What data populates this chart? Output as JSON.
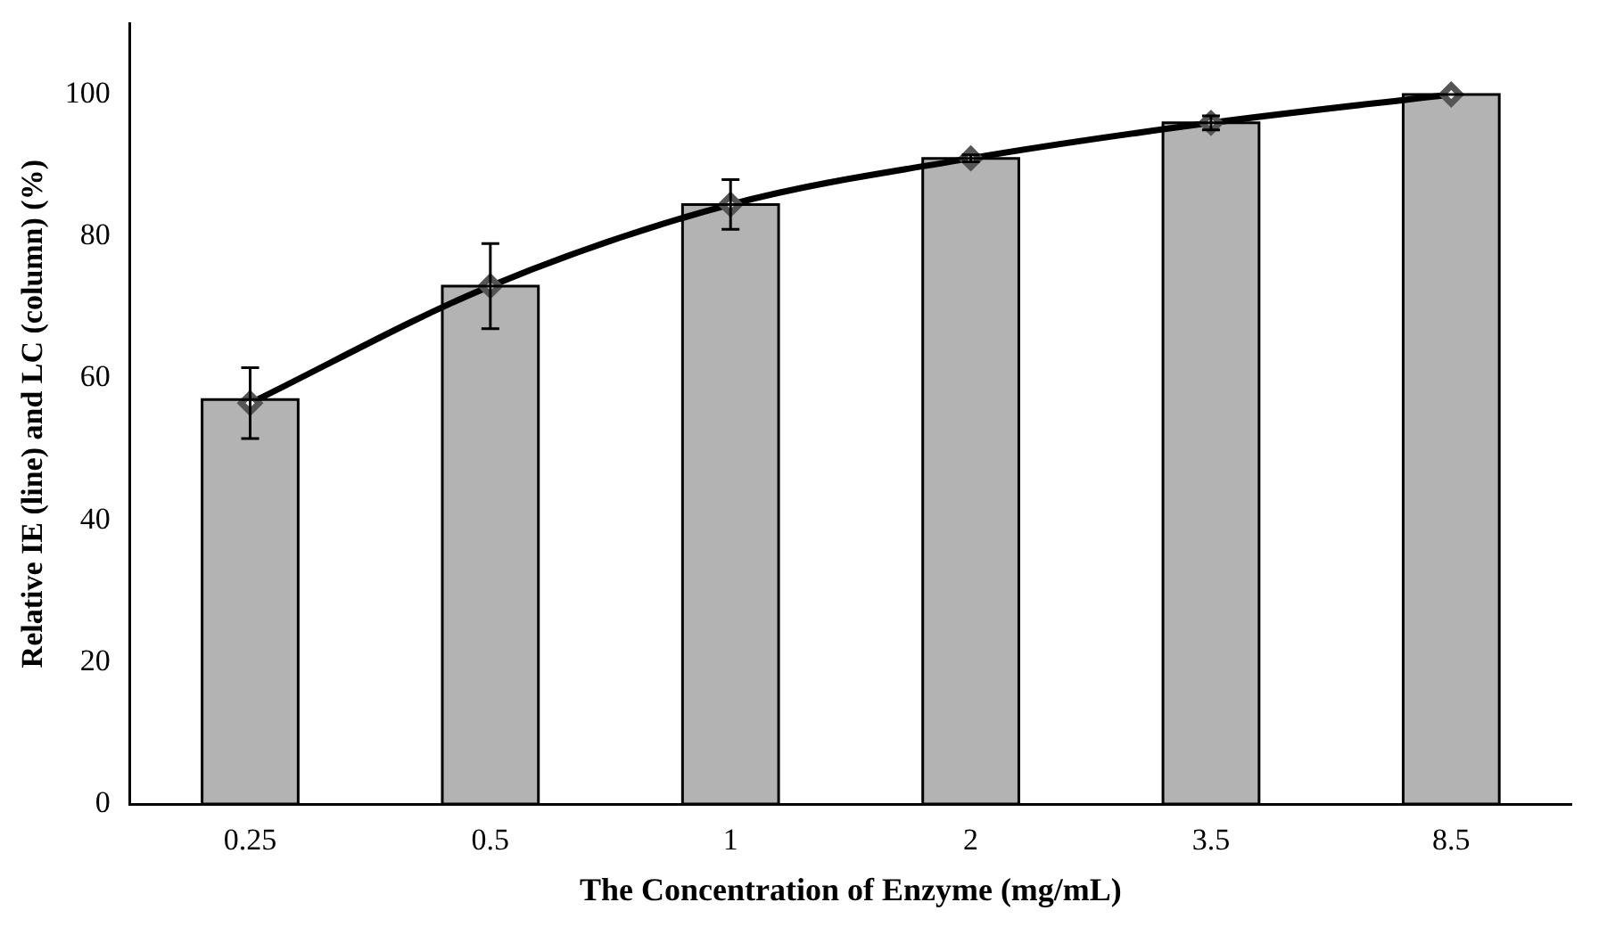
{
  "chart_data": {
    "type": "bar",
    "xlabel": "The Concentration of Enzyme (mg/mL)",
    "ylabel": "Relative IE (line) and LC (column) (%)",
    "categories": [
      "0.25",
      "0.5",
      "1",
      "2",
      "3.5",
      "8.5"
    ],
    "series": [
      {
        "color": "#b3b3b3",
        "values": [
          57,
          73,
          84.5,
          91,
          96,
          100
        ]
      },
      {
        "type": "line",
        "color": "#000000",
        "values": [
          56.5,
          73,
          84.5,
          91,
          96,
          100
        ],
        "errors": [
          5,
          6,
          3.5,
          0.5,
          1,
          null
        ],
        "marker": "diamond"
      }
    ],
    "ylim": [
      0,
      110
    ],
    "yticks": [
      0,
      20,
      40,
      60,
      80,
      100
    ],
    "grid": false,
    "legend": false
  }
}
